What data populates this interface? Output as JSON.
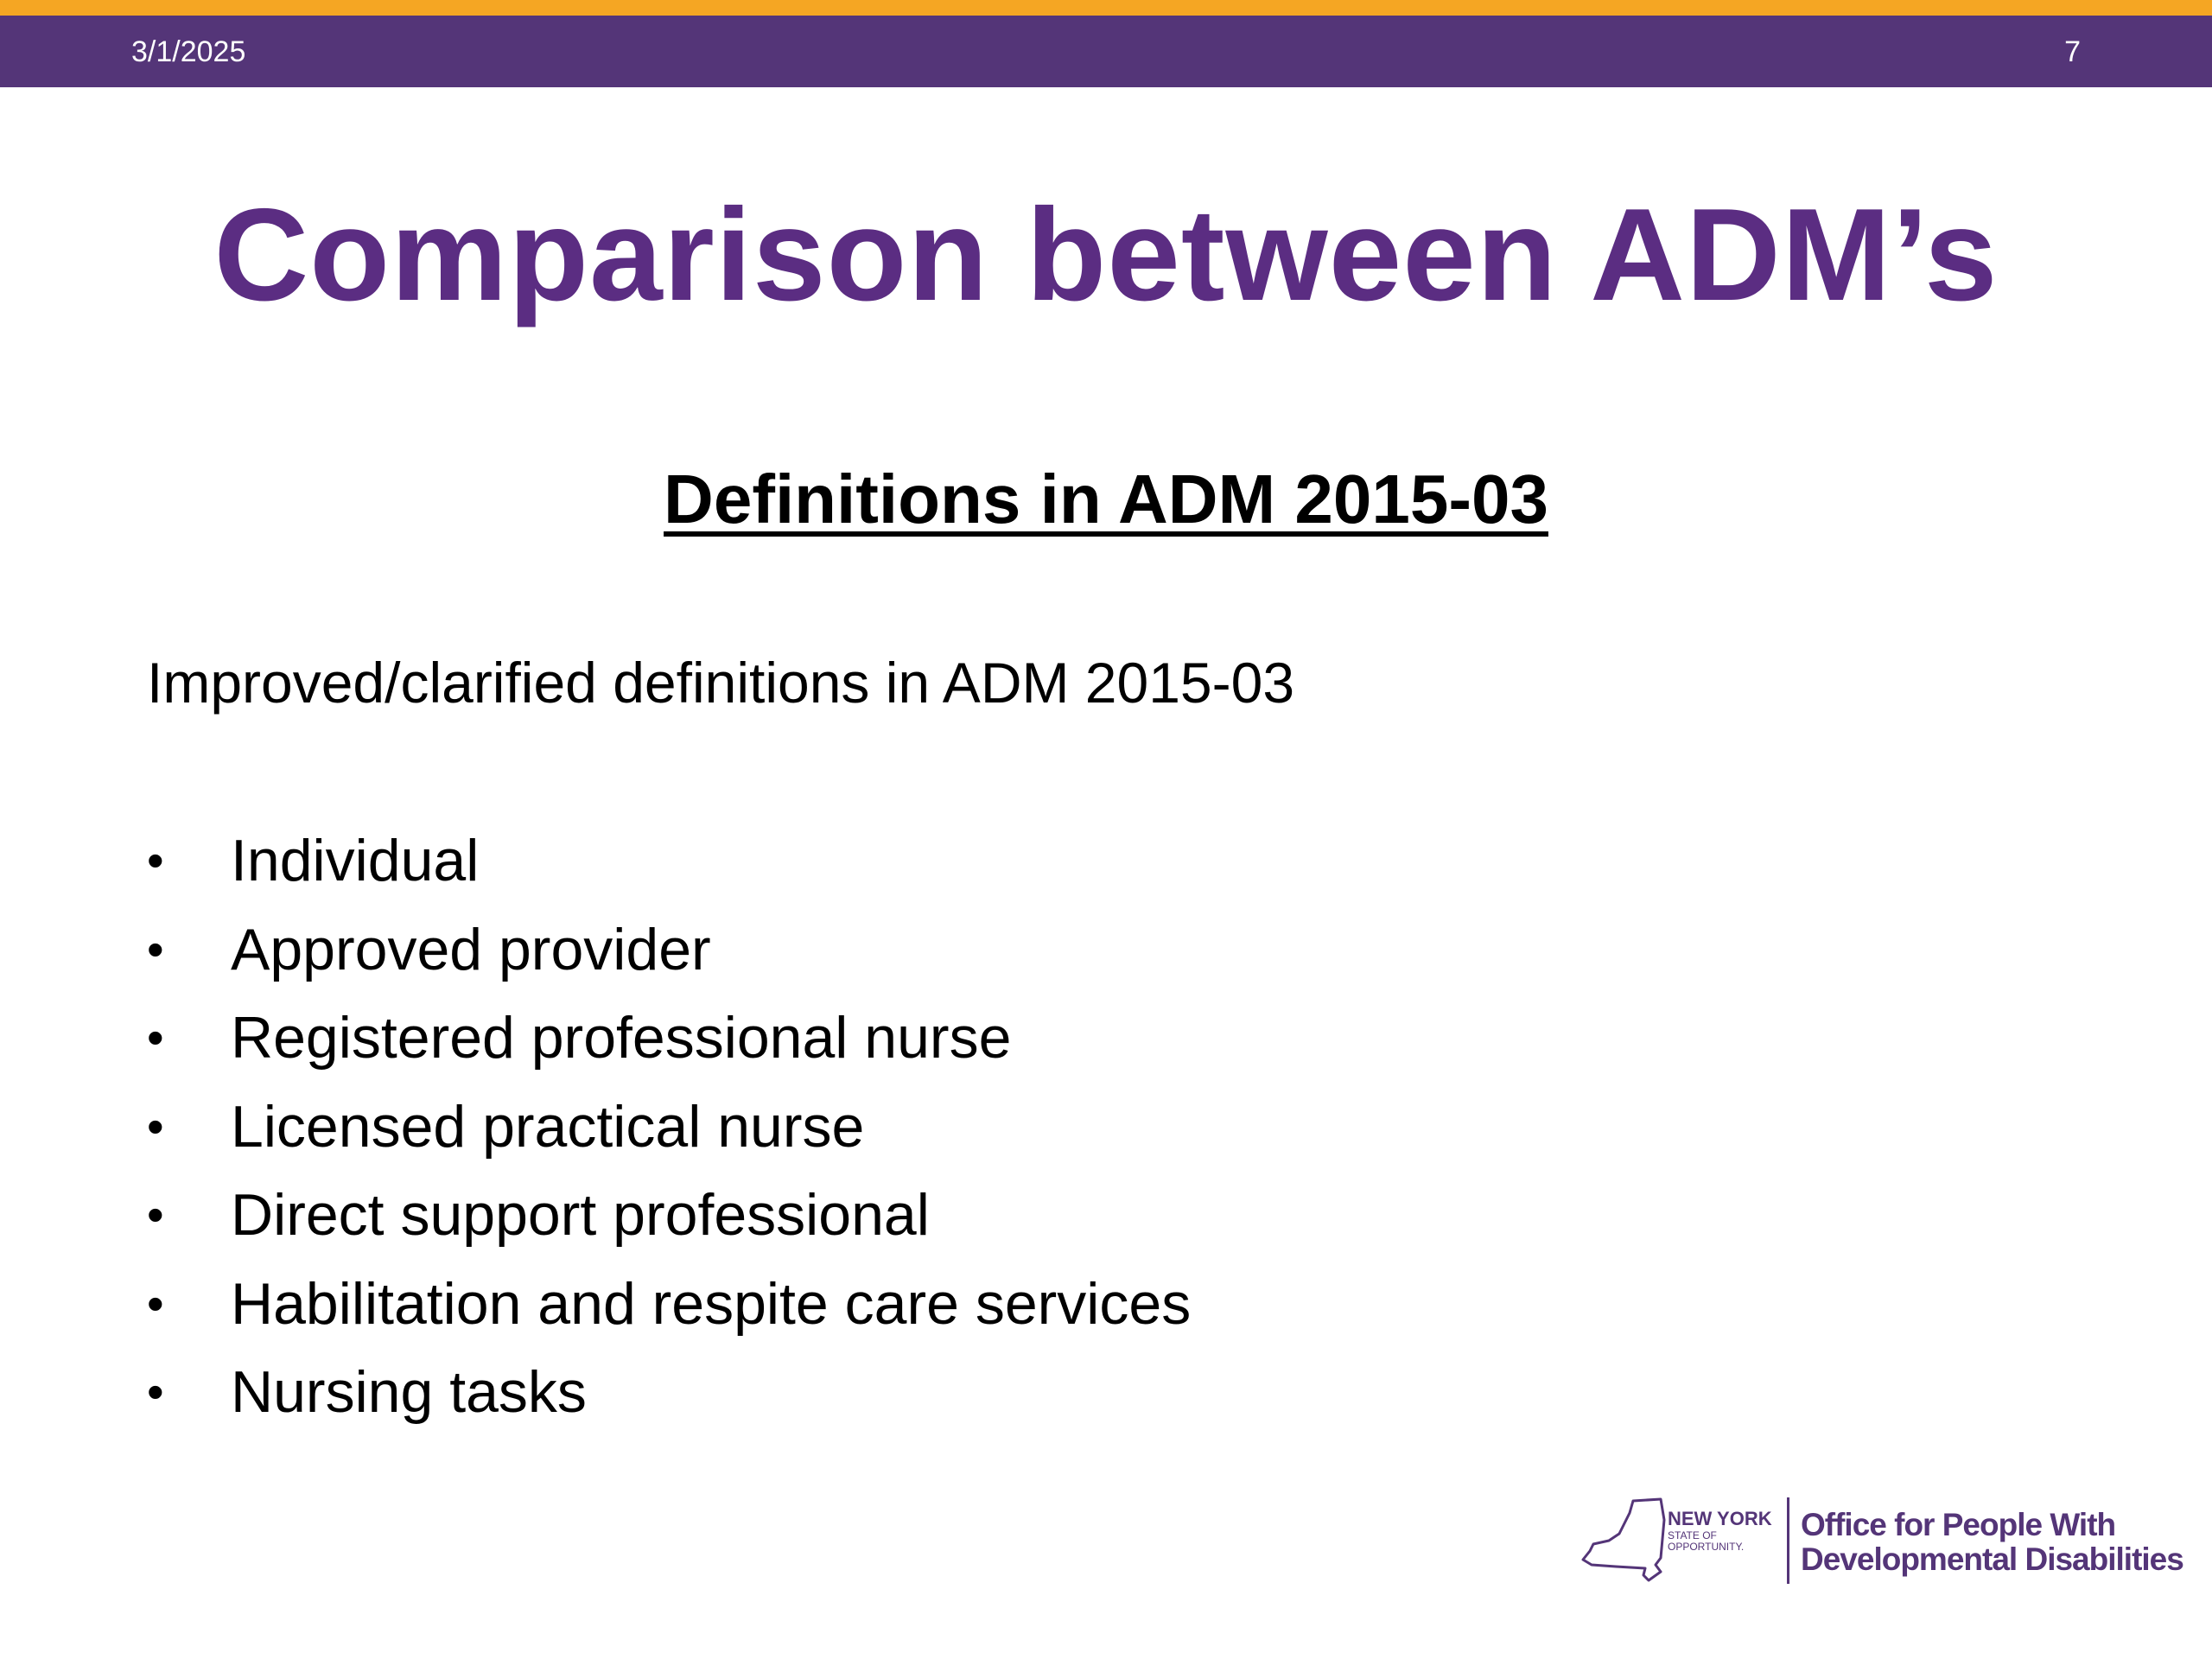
{
  "header": {
    "date": "3/1/2025",
    "page_number": "7"
  },
  "title": "Comparison between ADM’s",
  "subtitle": "Definitions in ADM 2015-03",
  "intro": "Improved/clarified definitions in ADM 2015-03",
  "bullets": [
    "Individual",
    "Approved provider",
    "Registered professional nurse",
    "Licensed practical nurse",
    "Direct support professional",
    "Habilitation and respite care services",
    "Nursing tasks"
  ],
  "logo": {
    "state_name": "NEW YORK",
    "state_sub_1": "STATE OF",
    "state_sub_2": "OPPORTUNITY.",
    "agency_line_1": "Office for People With",
    "agency_line_2": "Developmental Disabilities"
  },
  "colors": {
    "accent_stripe": "#f5a623",
    "header_band": "#543578",
    "title": "#5b2d82",
    "logo": "#543578"
  },
  "icons": {
    "logo_state_outline": "new-york-state-outline-icon",
    "bullet": "bullet-dot-icon"
  }
}
